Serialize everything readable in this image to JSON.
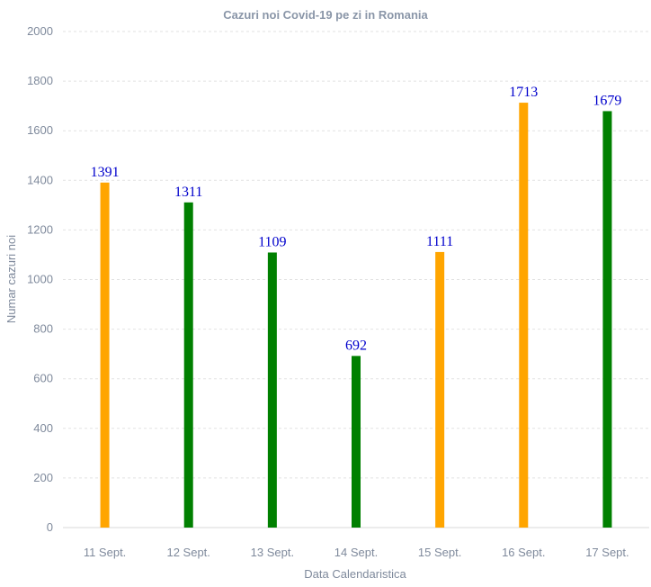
{
  "chart_data": {
    "type": "bar",
    "title": "Cazuri noi Covid-19 pe zi in Romania",
    "xlabel": "Data Calendaristica",
    "ylabel": "Numar cazuri noi",
    "categories": [
      "11 Sept.",
      "12 Sept.",
      "13 Sept.",
      "14 Sept.",
      "15 Sept.",
      "16 Sept.",
      "17 Sept."
    ],
    "values": [
      1391,
      1311,
      1109,
      692,
      1111,
      1713,
      1679
    ],
    "bar_colors": [
      "#ffa500",
      "#008000",
      "#008000",
      "#008000",
      "#ffa500",
      "#ffa500",
      "#008000"
    ],
    "data_label_color": "#0000cc",
    "ylim": [
      0,
      2000
    ],
    "yticks": [
      0,
      200,
      400,
      600,
      800,
      1000,
      1200,
      1400,
      1600,
      1800,
      2000
    ],
    "grid": true,
    "legend": "none"
  }
}
